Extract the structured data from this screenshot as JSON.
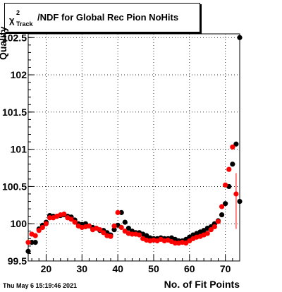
{
  "title": {
    "chi": "χ",
    "sup": "2",
    "sub": "Track",
    "rest": "/NDF for Global Rec Pion NoHits"
  },
  "timestamp": "Thu May  6 15:19:46 2021",
  "chart_data": {
    "type": "scatter",
    "xlabel": "No. of Fit Points",
    "ylabel": "Quality",
    "xlim": [
      15,
      74
    ],
    "ylim": [
      99.5,
      102.55
    ],
    "xticks": [
      20,
      30,
      40,
      50,
      60,
      70
    ],
    "yticks": [
      99.5,
      100,
      100.5,
      101,
      101.5,
      102,
      102.5
    ],
    "ytick_labels": [
      "99.5",
      "100",
      "100.5",
      "101",
      "101.5",
      "102",
      "102.5"
    ],
    "grid": true,
    "colors": {
      "series1": "#000000",
      "series2": "#ff0000"
    },
    "series": [
      {
        "x": [
          15,
          16,
          17,
          18,
          19,
          20,
          21,
          22,
          23,
          24,
          25,
          26,
          27,
          28,
          29,
          30,
          31,
          32,
          33,
          34,
          35,
          36,
          37,
          38,
          39,
          40,
          41,
          42,
          43,
          44,
          45,
          46,
          47,
          48,
          49,
          50,
          51,
          52,
          53,
          54,
          55,
          56,
          57,
          58,
          59,
          60,
          61,
          62,
          63,
          64,
          65,
          66,
          67,
          68,
          69,
          70,
          71,
          72,
          73,
          74
        ],
        "y": [
          99.63,
          99.75,
          99.75,
          99.93,
          99.98,
          100.02,
          100.11,
          100.1,
          100.1,
          100.11,
          100.12,
          100.1,
          100.09,
          100.05,
          100.0,
          99.99,
          100.0,
          99.97,
          99.95,
          99.94,
          99.91,
          99.91,
          99.88,
          99.85,
          99.92,
          99.98,
          100.15,
          100.02,
          99.94,
          99.9,
          99.88,
          99.88,
          99.86,
          99.84,
          99.81,
          99.8,
          99.8,
          99.81,
          99.8,
          99.8,
          99.81,
          99.79,
          99.77,
          99.77,
          99.79,
          99.82,
          99.85,
          99.87,
          99.89,
          99.91,
          99.94,
          99.96,
          100.0,
          100.04,
          100.12,
          100.27,
          100.5,
          100.8,
          101.07,
          100.3
        ],
        "extra": {
          "x": 74,
          "y": 102.5
        }
      },
      {
        "x": [
          15,
          16,
          17,
          18,
          19,
          20,
          21,
          22,
          23,
          24,
          25,
          26,
          27,
          28,
          29,
          30,
          31,
          32,
          33,
          34,
          35,
          36,
          37,
          38,
          39,
          40,
          41,
          42,
          43,
          44,
          45,
          46,
          47,
          48,
          49,
          50,
          51,
          52,
          53,
          54,
          55,
          56,
          57,
          58,
          59,
          60,
          61,
          62,
          63,
          64,
          65,
          66,
          67,
          68,
          69,
          70,
          71,
          72,
          73
        ],
        "y": [
          99.75,
          99.86,
          99.84,
          99.91,
          99.95,
          100.0,
          100.08,
          100.08,
          100.1,
          100.12,
          100.13,
          100.08,
          100.06,
          100.02,
          99.97,
          99.95,
          99.96,
          99.97,
          99.92,
          99.94,
          99.92,
          99.88,
          99.84,
          99.83,
          99.97,
          100.15,
          99.95,
          99.9,
          99.87,
          99.86,
          99.86,
          99.85,
          99.8,
          99.78,
          99.77,
          99.78,
          99.77,
          99.79,
          99.77,
          99.78,
          99.76,
          99.74,
          99.74,
          99.75,
          99.74,
          99.77,
          99.8,
          99.82,
          99.83,
          99.85,
          99.87,
          99.92,
          99.96,
          100.03,
          100.23,
          100.52,
          100.73,
          101.03,
          100.4
        ],
        "error": {
          "x": 73,
          "low": 99.93,
          "high": 100.68
        }
      }
    ]
  }
}
